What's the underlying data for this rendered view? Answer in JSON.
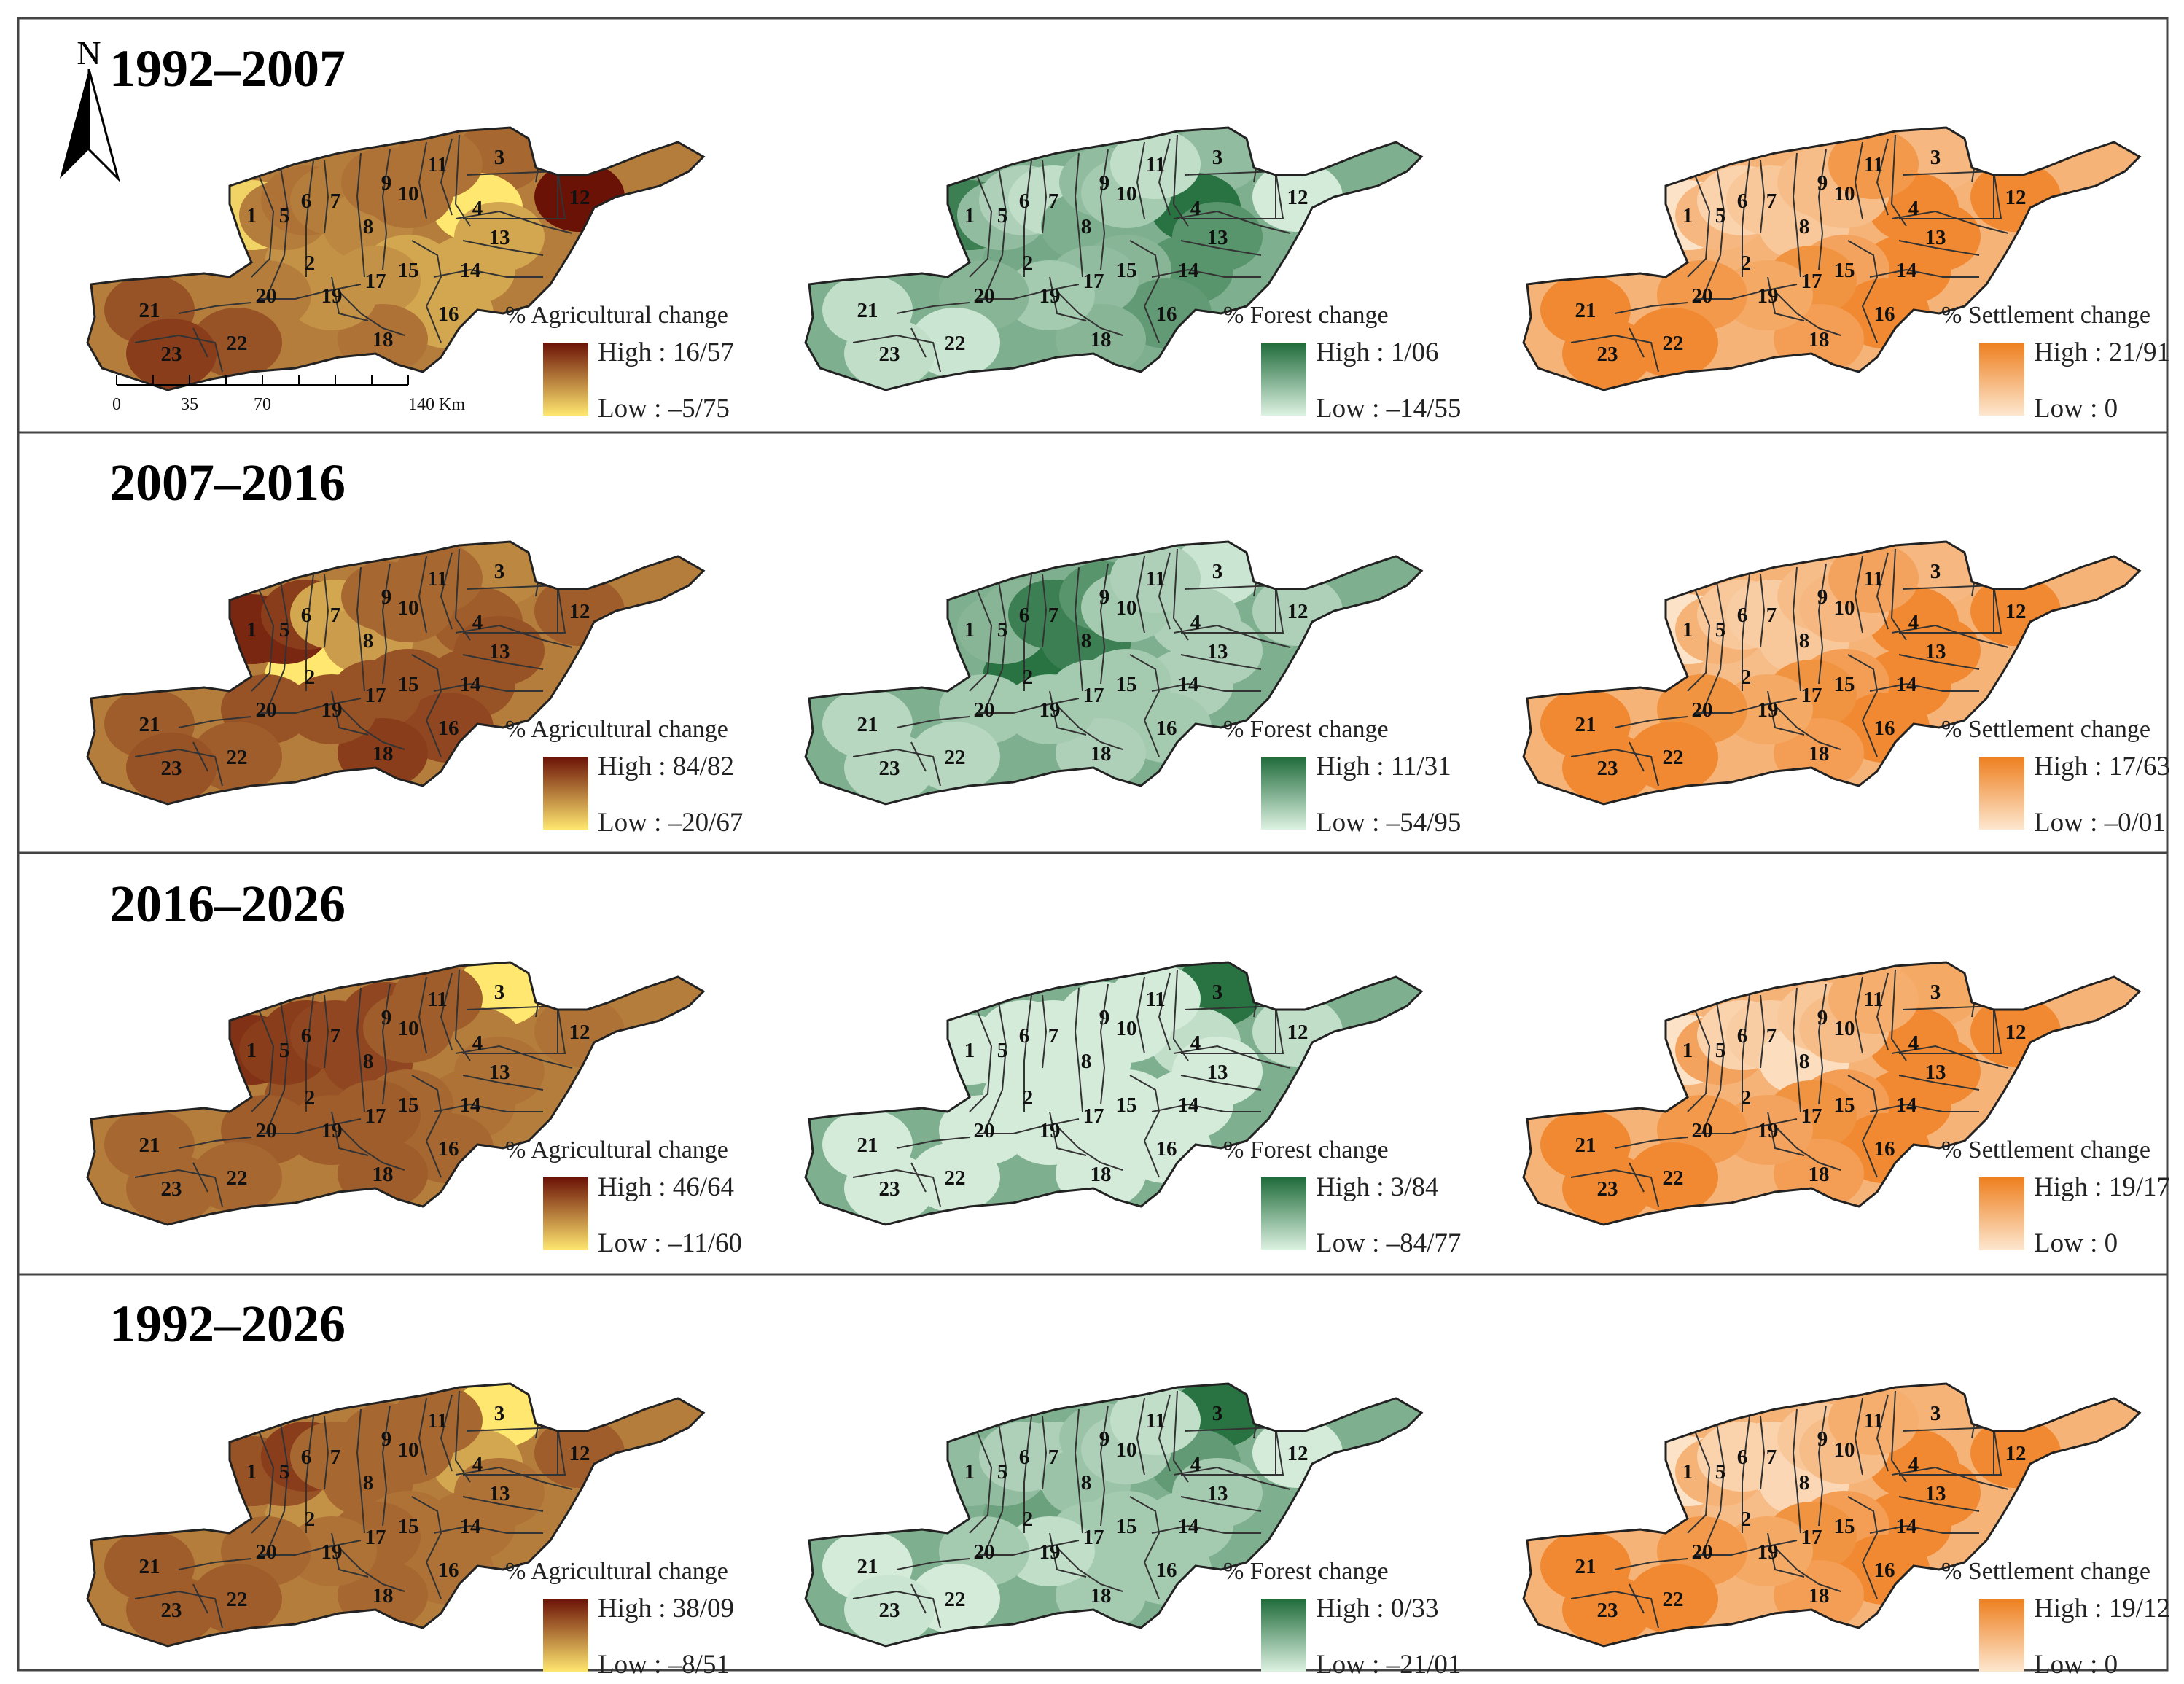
{
  "figure": {
    "rows": [
      {
        "period": "1992–2007",
        "panels": [
          {
            "title": "% Agricultural change",
            "high": "High : 16/57",
            "low": "Low : –5/75",
            "ramp": [
              "#6b1206",
              "#ffe770"
            ],
            "shades": [
              0.9,
              0.6,
              0.4,
              1.0,
              0.5,
              0.45,
              0.5,
              0.55,
              0.45,
              0.45,
              0.45,
              0.0,
              0.7,
              0.7,
              0.7,
              0.7,
              0.6,
              0.45,
              0.6,
              0.5,
              0.3,
              0.3,
              0.2
            ]
          },
          {
            "title": "% Forest change",
            "high": "High : 1/06",
            "low": "Low : –14/55",
            "ramp": [
              "#1f6b3a",
              "#ddf2e2"
            ],
            "shades": [
              0.15,
              0.45,
              0.6,
              0.05,
              0.6,
              0.75,
              0.85,
              0.5,
              0.6,
              0.7,
              0.85,
              0.95,
              0.3,
              0.3,
              0.55,
              0.35,
              0.6,
              0.55,
              0.7,
              0.55,
              0.85,
              0.9,
              0.85
            ]
          },
          {
            "title": "% Settlement change",
            "high": "High : 21/91",
            "low": "Low : 0",
            "ramp": [
              "#ee7f1f",
              "#fde7cf"
            ],
            "shades": [
              0.95,
              0.5,
              0.55,
              0.1,
              0.55,
              0.8,
              0.7,
              0.7,
              0.6,
              0.6,
              0.25,
              0.1,
              0.1,
              0.1,
              0.35,
              0.1,
              0.2,
              0.3,
              0.4,
              0.25,
              0.1,
              0.1,
              0.1
            ]
          }
        ]
      },
      {
        "period": "2007–2016",
        "panels": [
          {
            "title": "% Agricultural change",
            "high": "High : 84/82",
            "low": "Low : –20/67",
            "ramp": [
              "#6b1206",
              "#ffe770"
            ],
            "shades": [
              0.1,
              1.0,
              0.55,
              0.35,
              0.1,
              0.2,
              0.7,
              0.65,
              0.4,
              0.4,
              0.4,
              0.35,
              0.3,
              0.3,
              0.3,
              0.25,
              0.3,
              0.2,
              0.3,
              0.3,
              0.35,
              0.35,
              0.3
            ]
          },
          {
            "title": "% Forest change",
            "high": "High : 11/31",
            "low": "Low : –54/95",
            "ramp": [
              "#1f6b3a",
              "#ddf2e2"
            ],
            "shades": [
              0.5,
              0.05,
              0.9,
              0.75,
              0.55,
              0.55,
              0.15,
              0.15,
              0.3,
              0.7,
              0.75,
              0.75,
              0.75,
              0.75,
              0.7,
              0.7,
              0.7,
              0.75,
              0.7,
              0.7,
              0.8,
              0.8,
              0.8
            ]
          },
          {
            "title": "% Settlement change",
            "high": "High : 17/63",
            "low": "Low : –0/01",
            "ramp": [
              "#ee7f1f",
              "#fde7cf"
            ],
            "shades": [
              0.95,
              0.6,
              0.55,
              0.1,
              0.5,
              0.7,
              0.75,
              0.7,
              0.6,
              0.55,
              0.35,
              0.1,
              0.1,
              0.1,
              0.3,
              0.1,
              0.2,
              0.3,
              0.4,
              0.2,
              0.1,
              0.1,
              0.1
            ]
          }
        ]
      },
      {
        "period": "2016–2026",
        "panels": [
          {
            "title": "% Agricultural change",
            "high": "High : 46/64",
            "low": "Low : –11/60",
            "ramp": [
              "#6b1206",
              "#ffe770"
            ],
            "shades": [
              0.15,
              0.3,
              1.0,
              0.5,
              0.2,
              0.2,
              0.25,
              0.25,
              0.25,
              0.35,
              0.35,
              0.45,
              0.45,
              0.45,
              0.4,
              0.4,
              0.35,
              0.35,
              0.35,
              0.35,
              0.4,
              0.4,
              0.4
            ]
          },
          {
            "title": "% Forest change",
            "high": "High : 3/84",
            "low": "Low : –84/77",
            "ramp": [
              "#1f6b3a",
              "#ddf2e2"
            ],
            "shades": [
              0.95,
              0.95,
              0.05,
              0.85,
              0.95,
              0.95,
              0.95,
              0.95,
              0.95,
              0.95,
              0.95,
              0.85,
              0.95,
              0.95,
              0.95,
              0.95,
              0.95,
              0.95,
              0.95,
              0.95,
              0.95,
              0.95,
              0.95
            ]
          },
          {
            "title": "% Settlement change",
            "high": "High : 19/17",
            "low": "Low : 0",
            "ramp": [
              "#ee7f1f",
              "#fde7cf"
            ],
            "shades": [
              0.95,
              0.5,
              0.4,
              0.1,
              0.35,
              0.8,
              0.75,
              0.9,
              0.7,
              0.6,
              0.45,
              0.1,
              0.1,
              0.1,
              0.3,
              0.1,
              0.2,
              0.3,
              0.35,
              0.25,
              0.1,
              0.1,
              0.1
            ]
          }
        ]
      },
      {
        "period": "1992–2026",
        "panels": [
          {
            "title": "% Agricultural change",
            "high": "High : 38/09",
            "low": "Low : –8/51",
            "ramp": [
              "#6b1206",
              "#ffe770"
            ],
            "shades": [
              0.3,
              0.6,
              1.0,
              0.7,
              0.3,
              0.2,
              0.4,
              0.4,
              0.4,
              0.4,
              0.4,
              0.35,
              0.45,
              0.45,
              0.45,
              0.45,
              0.4,
              0.4,
              0.45,
              0.4,
              0.35,
              0.35,
              0.35
            ]
          },
          {
            "title": "% Forest change",
            "high": "High : 0/33",
            "low": "Low : –21/01",
            "ramp": [
              "#1f6b3a",
              "#ddf2e2"
            ],
            "shades": [
              0.6,
              0.4,
              0.05,
              0.35,
              0.6,
              0.75,
              0.75,
              0.65,
              0.65,
              0.75,
              0.85,
              0.95,
              0.7,
              0.7,
              0.7,
              0.7,
              0.7,
              0.7,
              0.85,
              0.7,
              0.95,
              0.95,
              0.9
            ]
          },
          {
            "title": "% Settlement change",
            "high": "High : 19/12",
            "low": "Low : 0",
            "ramp": [
              "#ee7f1f",
              "#fde7cf"
            ],
            "shades": [
              0.95,
              0.6,
              0.5,
              0.1,
              0.5,
              0.8,
              0.8,
              0.85,
              0.7,
              0.6,
              0.45,
              0.1,
              0.1,
              0.1,
              0.3,
              0.1,
              0.2,
              0.3,
              0.4,
              0.25,
              0.1,
              0.1,
              0.1
            ]
          }
        ]
      }
    ],
    "north_label": "N",
    "scale_labels": [
      "0",
      "35",
      "70",
      "140 Km"
    ],
    "district_labels": [
      "1",
      "2",
      "3",
      "4",
      "5",
      "6",
      "7",
      "8",
      "9",
      "10",
      "11",
      "12",
      "13",
      "14",
      "15",
      "16",
      "17",
      "18",
      "19",
      "20",
      "21",
      "22",
      "23"
    ]
  }
}
